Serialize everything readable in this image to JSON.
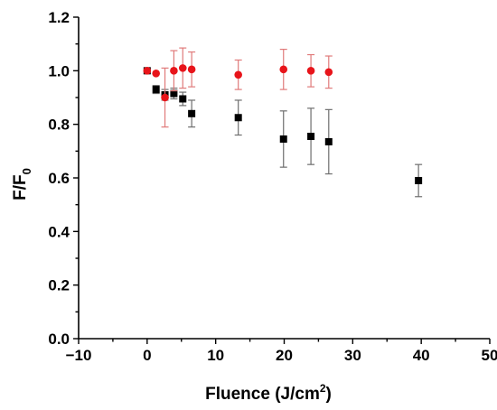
{
  "chart_data": {
    "type": "scatter",
    "title": "",
    "xlabel": "Fluence (J/cm",
    "xlabel_sup": "2",
    "xlabel_tail": ")",
    "ylabel": "F/F",
    "ylabel_sub": "0",
    "xlim": [
      -10,
      50
    ],
    "ylim": [
      0.0,
      1.2
    ],
    "x_ticks": [
      -10,
      0,
      10,
      20,
      30,
      40,
      50
    ],
    "x_tick_labels": [
      "−10",
      "0",
      "10",
      "20",
      "30",
      "40",
      "50"
    ],
    "y_ticks": [
      0.0,
      0.2,
      0.4,
      0.6,
      0.8,
      1.0,
      1.2
    ],
    "y_tick_labels": [
      "0.0",
      "0.2",
      "0.4",
      "0.6",
      "0.8",
      "1.0",
      "1.2"
    ],
    "grid": false,
    "legend": "none",
    "series": [
      {
        "marker": "square",
        "color": "#000000",
        "errorbar_color": "#6e6e6e",
        "x": [
          0,
          1.3,
          2.6,
          3.9,
          5.2,
          6.5,
          13.3,
          19.9,
          23.9,
          26.5,
          39.6
        ],
        "y": [
          1.0,
          0.93,
          0.91,
          0.915,
          0.895,
          0.84,
          0.825,
          0.745,
          0.755,
          0.735,
          0.59
        ],
        "err": [
          0.0,
          0.015,
          0.02,
          0.02,
          0.025,
          0.05,
          0.065,
          0.105,
          0.105,
          0.12,
          0.06
        ]
      },
      {
        "marker": "circle",
        "color": "#e8141a",
        "errorbar_color": "#e07a7a",
        "x": [
          0,
          1.3,
          2.6,
          3.9,
          5.2,
          6.5,
          13.3,
          19.9,
          23.9,
          26.5
        ],
        "y": [
          1.0,
          0.99,
          0.9,
          1.0,
          1.01,
          1.005,
          0.985,
          1.005,
          1.0,
          0.995
        ],
        "err": [
          0.0,
          0.0,
          0.11,
          0.075,
          0.075,
          0.065,
          0.055,
          0.075,
          0.06,
          0.06
        ]
      }
    ]
  }
}
